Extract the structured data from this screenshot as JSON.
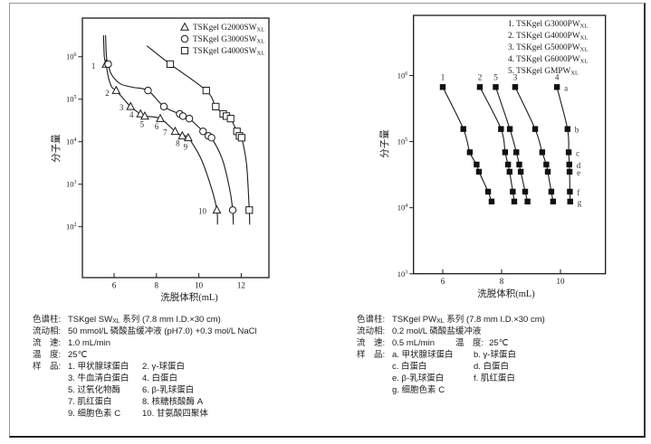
{
  "page": {
    "background": "#ffffff",
    "border_color": "#9a9a9a",
    "ink": "#1a1a1a",
    "label_ink": "#333333"
  },
  "chart_data": [
    {
      "id": "sw",
      "type": "line",
      "title": "",
      "xlabel": "洗脱体积(mL)",
      "ylabel": "分子量",
      "x_ticks": [
        6,
        8,
        10,
        12
      ],
      "x_range": [
        4.5,
        13.3
      ],
      "y_ticks_exponents": [
        2,
        3,
        4,
        5,
        6
      ],
      "log_y_range": [
        0.8,
        6.9
      ],
      "grid": false,
      "legend_position": "top-right-inside",
      "legend": [
        {
          "marker": "triangle",
          "pre": "TSKgel G2000SW",
          "sub": "XL"
        },
        {
          "marker": "circle",
          "pre": "TSKgel G3000SW",
          "sub": "XL"
        },
        {
          "marker": "square",
          "pre": "TSKgel G4000SW",
          "sub": "XL"
        }
      ],
      "series": [
        {
          "name": "TSKgel G2000SWXL",
          "marker": "triangle",
          "samples": [
            {
              "n": "1",
              "x": 5.62,
              "mw": 669000,
              "dx": -14,
              "dy": 5
            },
            {
              "n": "2",
              "x": 6.1,
              "mw": 160000,
              "dx": -10,
              "dy": 6
            },
            {
              "n": "3",
              "x": 6.78,
              "mw": 67000,
              "dx": -10,
              "dy": 4
            },
            {
              "n": "4",
              "x": 7.25,
              "mw": 45000,
              "dx": -10,
              "dy": 4
            },
            {
              "n": "5",
              "x": 7.45,
              "mw": 40000,
              "dx": -3,
              "dy": 12
            },
            {
              "n": "6",
              "x": 8.18,
              "mw": 35000,
              "dx": -4,
              "dy": 12
            },
            {
              "n": "7",
              "x": 8.88,
              "mw": 17500,
              "dx": -11,
              "dy": 4
            },
            {
              "n": "8",
              "x": 9.22,
              "mw": 13700,
              "dx": -5,
              "dy": 11
            },
            {
              "n": "9",
              "x": 9.5,
              "mw": 12400,
              "dx": -3,
              "dy": 13
            },
            {
              "n": "10",
              "x": 10.85,
              "mw": 246,
              "dx": -16,
              "dy": 4
            }
          ],
          "curve": [
            [
              5.5,
              3200000
            ],
            [
              5.54,
              1000000
            ],
            [
              5.62,
              669000
            ],
            [
              5.74,
              316000
            ],
            [
              5.9,
              190000
            ],
            [
              6.1,
              160000
            ],
            [
              6.78,
              67000
            ],
            [
              7.25,
              45000
            ],
            [
              7.45,
              40000
            ],
            [
              8.18,
              35000
            ],
            [
              8.88,
              17500
            ],
            [
              9.22,
              13700
            ],
            [
              9.5,
              12400
            ],
            [
              10.1,
              4000
            ],
            [
              10.6,
              800
            ],
            [
              10.85,
              246
            ],
            [
              10.88,
              112
            ]
          ]
        },
        {
          "name": "TSKgel G3000SWXL",
          "marker": "circle",
          "samples": [
            {
              "x": 5.72,
              "mw": 669000
            },
            {
              "x": 7.6,
              "mw": 160000
            },
            {
              "x": 8.35,
              "mw": 67000
            },
            {
              "x": 9.1,
              "mw": 45000
            },
            {
              "x": 9.25,
              "mw": 40000
            },
            {
              "x": 9.55,
              "mw": 35000
            },
            {
              "x": 10.2,
              "mw": 17500
            },
            {
              "x": 10.45,
              "mw": 13700
            },
            {
              "x": 10.6,
              "mw": 12400
            },
            {
              "x": 11.6,
              "mw": 246
            }
          ],
          "curve": [
            [
              5.6,
              3200000
            ],
            [
              5.64,
              1000000
            ],
            [
              5.72,
              669000
            ],
            [
              5.88,
              380000
            ],
            [
              6.3,
              230000
            ],
            [
              6.9,
              190000
            ],
            [
              7.6,
              160000
            ],
            [
              8.35,
              67000
            ],
            [
              9.1,
              45000
            ],
            [
              9.25,
              40000
            ],
            [
              9.55,
              35000
            ],
            [
              10.2,
              17500
            ],
            [
              10.45,
              13700
            ],
            [
              10.6,
              12400
            ],
            [
              11.1,
              4000
            ],
            [
              11.45,
              800
            ],
            [
              11.6,
              246
            ],
            [
              11.63,
              112
            ]
          ]
        },
        {
          "name": "TSKgel G4000SWXL",
          "marker": "square",
          "samples": [
            {
              "x": 8.65,
              "mw": 669000
            },
            {
              "x": 10.35,
              "mw": 160000
            },
            {
              "x": 10.8,
              "mw": 67000
            },
            {
              "x": 11.15,
              "mw": 45000
            },
            {
              "x": 11.3,
              "mw": 40000
            },
            {
              "x": 11.5,
              "mw": 35000
            },
            {
              "x": 11.8,
              "mw": 17500
            },
            {
              "x": 11.92,
              "mw": 13700
            },
            {
              "x": 12.02,
              "mw": 12400
            },
            {
              "x": 12.38,
              "mw": 246
            }
          ],
          "curve": [
            [
              7.55,
              1800000
            ],
            [
              8.65,
              669000
            ],
            [
              10.35,
              160000
            ],
            [
              10.8,
              67000
            ],
            [
              11.15,
              45000
            ],
            [
              11.3,
              40000
            ],
            [
              11.5,
              35000
            ],
            [
              11.8,
              17500
            ],
            [
              11.92,
              13700
            ],
            [
              12.02,
              12400
            ],
            [
              12.25,
              3000
            ],
            [
              12.38,
              246
            ],
            [
              12.4,
              112
            ]
          ]
        }
      ]
    },
    {
      "id": "pw",
      "type": "line",
      "title": "",
      "xlabel": "洗脱体积(mL)",
      "ylabel": "分子量",
      "x_ticks": [
        6,
        8,
        10
      ],
      "x_range": [
        5.0,
        11.5
      ],
      "y_ticks_exponents": [
        3,
        4,
        5,
        6
      ],
      "log_y_range": [
        3.0,
        6.9
      ],
      "grid": false,
      "legend_position": "top-right-inside",
      "legend": [
        {
          "num": "1.",
          "pre": "TSKgel G3000PW",
          "sub": "XL"
        },
        {
          "num": "2.",
          "pre": "TSKgel G4000PW",
          "sub": "XL"
        },
        {
          "num": "3.",
          "pre": "TSKgel G5000PW",
          "sub": "XL"
        },
        {
          "num": "4.",
          "pre": "TSKgel G6000PW",
          "sub": "XL"
        },
        {
          "num": "5.",
          "pre": "TSKgel GMPW",
          "sub": "XL"
        }
      ],
      "series": [
        {
          "name": "TSKgel G3000PWXL",
          "marker": "fsquare",
          "top_label": "1",
          "samples": [
            {
              "x": 6.0,
              "mw": 669000
            },
            {
              "x": 6.7,
              "mw": 155000
            },
            {
              "x": 6.92,
              "mw": 69000
            },
            {
              "x": 7.15,
              "mw": 45000
            },
            {
              "x": 7.23,
              "mw": 35000
            },
            {
              "x": 7.54,
              "mw": 17500
            },
            {
              "x": 7.66,
              "mw": 12400
            }
          ],
          "curve": [
            [
              6.0,
              669000
            ],
            [
              6.7,
              155000
            ],
            [
              6.92,
              69000
            ],
            [
              7.15,
              45000
            ],
            [
              7.23,
              35000
            ],
            [
              7.54,
              17500
            ],
            [
              7.66,
              12400
            ]
          ]
        },
        {
          "name": "TSKgel G4000PWXL",
          "marker": "fsquare",
          "top_label": "2",
          "samples": [
            {
              "x": 7.26,
              "mw": 669000
            },
            {
              "x": 7.98,
              "mw": 155000
            },
            {
              "x": 8.12,
              "mw": 69000
            },
            {
              "x": 8.22,
              "mw": 45000
            },
            {
              "x": 8.27,
              "mw": 35000
            },
            {
              "x": 8.38,
              "mw": 17500
            },
            {
              "x": 8.43,
              "mw": 12400
            }
          ],
          "curve": [
            [
              7.26,
              669000
            ],
            [
              7.98,
              155000
            ],
            [
              8.12,
              69000
            ],
            [
              8.22,
              45000
            ],
            [
              8.27,
              35000
            ],
            [
              8.38,
              17500
            ],
            [
              8.43,
              12400
            ]
          ]
        },
        {
          "name": "TSKgel G5000PWXL",
          "marker": "fsquare",
          "top_label": "3",
          "samples": [
            {
              "x": 8.46,
              "mw": 669000
            },
            {
              "x": 9.14,
              "mw": 155000
            },
            {
              "x": 9.38,
              "mw": 69000
            },
            {
              "x": 9.52,
              "mw": 45000
            },
            {
              "x": 9.57,
              "mw": 35000
            },
            {
              "x": 9.69,
              "mw": 17500
            },
            {
              "x": 9.75,
              "mw": 12400
            }
          ],
          "curve": [
            [
              8.46,
              669000
            ],
            [
              9.14,
              155000
            ],
            [
              9.38,
              69000
            ],
            [
              9.52,
              45000
            ],
            [
              9.57,
              35000
            ],
            [
              9.69,
              17500
            ],
            [
              9.75,
              12400
            ]
          ]
        },
        {
          "name": "TSKgel G6000PWXL",
          "marker": "fsquare",
          "top_label": "4",
          "samples": [
            {
              "n": "a",
              "x": 9.88,
              "mw": 669000,
              "dx": 8,
              "dy": 4
            },
            {
              "n": "b",
              "x": 10.24,
              "mw": 155000,
              "dx": 8,
              "dy": 4
            },
            {
              "n": "c",
              "x": 10.28,
              "mw": 69000,
              "dx": 8,
              "dy": 4
            },
            {
              "n": "d",
              "x": 10.3,
              "mw": 45000,
              "dx": 8,
              "dy": 4
            },
            {
              "n": "e",
              "x": 10.31,
              "mw": 35000,
              "dx": 8,
              "dy": 4
            },
            {
              "n": "f",
              "x": 10.32,
              "mw": 17500,
              "dx": 8,
              "dy": 4
            },
            {
              "n": "g",
              "x": 10.33,
              "mw": 12400,
              "dx": 8,
              "dy": 4
            }
          ],
          "curve": [
            [
              9.88,
              669000
            ],
            [
              10.24,
              155000
            ],
            [
              10.28,
              69000
            ],
            [
              10.3,
              45000
            ],
            [
              10.31,
              35000
            ],
            [
              10.32,
              17500
            ],
            [
              10.33,
              12400
            ]
          ]
        },
        {
          "name": "TSKgel GMPWXL",
          "marker": "fsquare",
          "top_label": "5",
          "samples": [
            {
              "x": 7.8,
              "mw": 669000
            },
            {
              "x": 8.28,
              "mw": 155000
            },
            {
              "x": 8.5,
              "mw": 69000
            },
            {
              "x": 8.6,
              "mw": 45000
            },
            {
              "x": 8.65,
              "mw": 35000
            },
            {
              "x": 8.8,
              "mw": 17500
            },
            {
              "x": 8.88,
              "mw": 12400
            }
          ],
          "curve": [
            [
              7.8,
              669000
            ],
            [
              8.28,
              155000
            ],
            [
              8.5,
              69000
            ],
            [
              8.6,
              45000
            ],
            [
              8.65,
              35000
            ],
            [
              8.8,
              17500
            ],
            [
              8.88,
              12400
            ]
          ]
        }
      ]
    }
  ],
  "sw_info": {
    "rows": [
      {
        "label": "色谱柱:",
        "value": [
          {
            "t": "TSKgel SW"
          },
          {
            "t": "XL",
            "sub": true
          },
          {
            "t": " 系列 (7.8 mm I.D.×30 cm)"
          }
        ]
      },
      {
        "label": "流动相:",
        "value": [
          {
            "t": "50 mmol/L 磷酸盐缓冲液 (pH7.0) +0.3 mol/L NaCl"
          }
        ]
      },
      {
        "label": "流　速:",
        "value": [
          {
            "t": "1.0 mL/min"
          }
        ]
      },
      {
        "label": "温　度:",
        "value": [
          {
            "t": "25℃"
          }
        ]
      },
      {
        "label": "样　品:",
        "samples": true
      }
    ],
    "samples": [
      [
        "1. 甲状腺球蛋白",
        "2. γ-球蛋白"
      ],
      [
        "3. 牛血清白蛋白",
        "4. 白蛋白"
      ],
      [
        "5. 过氧化物酶",
        "6. β-乳球蛋白"
      ],
      [
        "7. 肌红蛋白",
        "8. 核糖核酸酶 A"
      ],
      [
        "9. 细胞色素 C",
        "10. 甘氨酸四聚体"
      ]
    ]
  },
  "pw_info": {
    "rows": [
      {
        "label": "色谱柱:",
        "value": [
          {
            "t": "TSKgel PW"
          },
          {
            "t": "XL",
            "sub": true
          },
          {
            "t": " 系列 (7.8 mm I.D.×30 cm)"
          }
        ]
      },
      {
        "label": "流动相:",
        "value": [
          {
            "t": "0.2 mol/L 磷酸盐缓冲液"
          }
        ]
      },
      {
        "label": "流　速:",
        "value": [
          {
            "t": "0.5 mL/min"
          }
        ],
        "label2": "温　度:",
        "value2": [
          {
            "t": "25℃"
          }
        ]
      },
      {
        "label": "样　品:",
        "samples": true
      }
    ],
    "samples": [
      [
        "a. 甲状腺球蛋白",
        "b. γ-球蛋白"
      ],
      [
        "c. 白蛋白",
        "d. 白蛋白"
      ],
      [
        "e. β-乳球蛋白",
        "f. 肌红蛋白"
      ],
      [
        "g. 细胞色素 C",
        ""
      ]
    ]
  }
}
